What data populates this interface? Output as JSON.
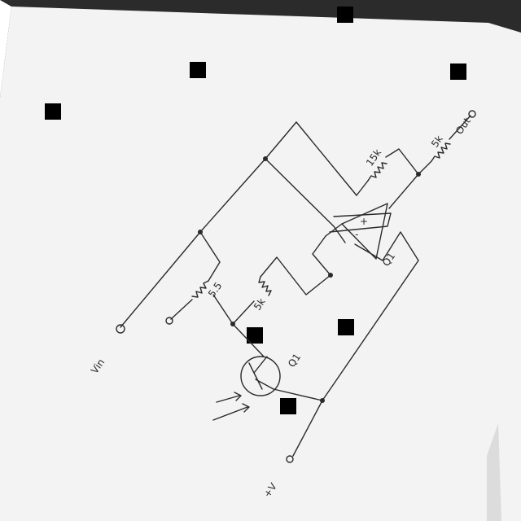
{
  "labels": {
    "r_top_left": "15k",
    "r_top_right": "5k",
    "r_mid_left": "5.5",
    "r_mid_right": "5k",
    "op_amp_ref": "Q1",
    "transistor_ref": "Q1",
    "out_terminal": "Out",
    "vin_terminal": "Vin",
    "pwr_terminal": "+V",
    "pin_plus": "+",
    "pin_minus": "-"
  },
  "colors": {
    "paper": "#f2f2f2",
    "ink": "#2a2a2a",
    "background": "#2b2b2b",
    "redaction": "#000000"
  }
}
